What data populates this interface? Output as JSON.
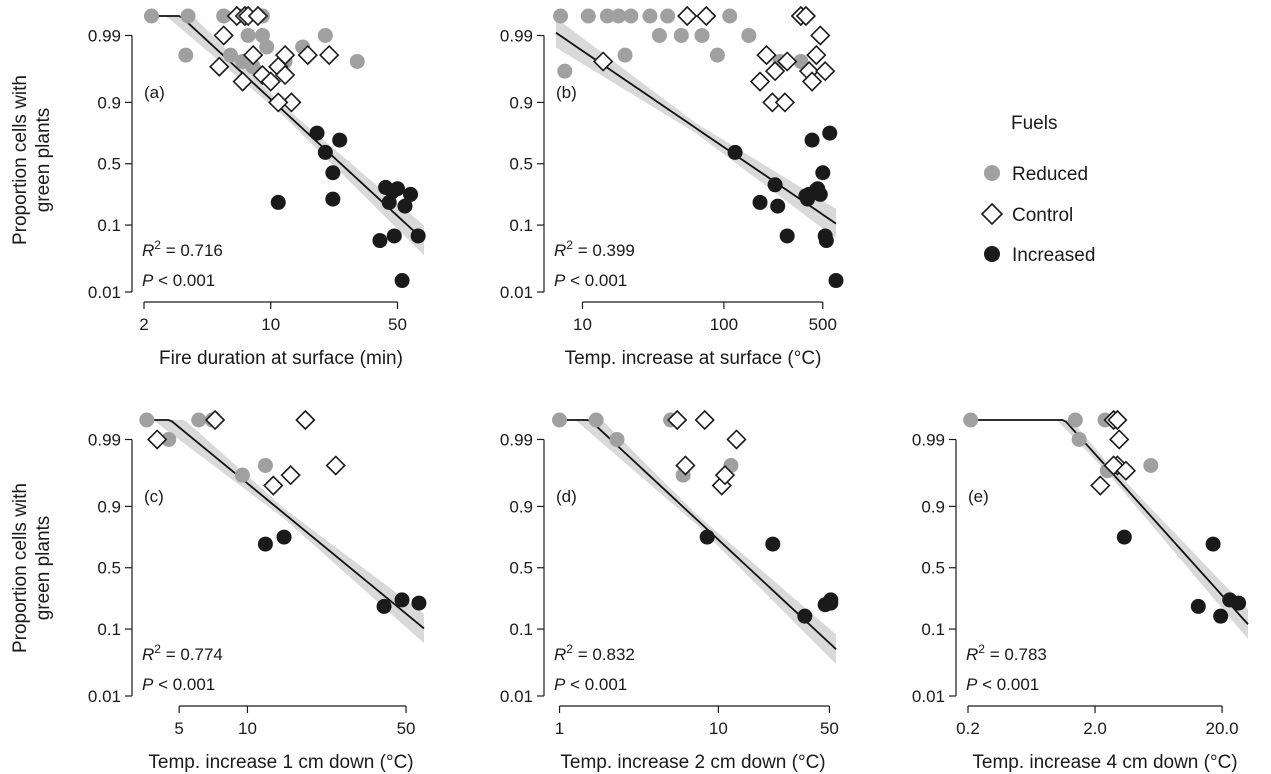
{
  "figure": {
    "ylabel_line1": "Proportion cells with",
    "ylabel_line2": "green plants",
    "legend": {
      "title": "Fuels",
      "items": [
        {
          "label": "Reduced",
          "marker": "gray-circle",
          "color": "#a0a0a0"
        },
        {
          "label": "Control",
          "marker": "open-diamond",
          "color": "#ffffff"
        },
        {
          "label": "Increased",
          "marker": "black-circle",
          "color": "#1a1a1a"
        }
      ]
    },
    "colors": {
      "reduced": "#a0a0a0",
      "control": "#ffffff",
      "increased": "#1a1a1a",
      "band": "#d9d9d9",
      "fit": "#111111"
    }
  },
  "chart_data": [
    {
      "type": "scatter",
      "panel": "(a)",
      "xlabel": "Fire duration at surface (min)",
      "ylabel": "Proportion cells with green plants",
      "xscale": "log",
      "yscale": "logit",
      "xlim": [
        2,
        70
      ],
      "ylim": [
        0.01,
        0.995
      ],
      "xticks": [
        2,
        10,
        50
      ],
      "xtick_labels": [
        "2",
        "10",
        "50"
      ],
      "yticks": [
        0.01,
        0.1,
        0.5,
        0.9,
        0.99
      ],
      "ytick_labels": [
        "0.01",
        "0.1",
        "0.5",
        "0.9",
        "0.99"
      ],
      "stats": {
        "r2": "0.716",
        "p": "0.001"
      },
      "fit": {
        "a": 8.3,
        "b": -2.6
      },
      "series": [
        {
          "name": "Reduced",
          "points": [
            [
              2.2,
              0.995
            ],
            [
              3.5,
              0.995
            ],
            [
              3.4,
              0.98
            ],
            [
              5.5,
              0.995
            ],
            [
              6,
              0.98
            ],
            [
              7,
              0.995
            ],
            [
              7.5,
              0.99
            ],
            [
              7,
              0.975
            ],
            [
              8,
              0.97
            ],
            [
              9,
              0.995
            ],
            [
              9.5,
              0.985
            ],
            [
              9,
              0.99
            ],
            [
              20,
              0.99
            ],
            [
              12,
              0.975
            ],
            [
              15,
              0.985
            ],
            [
              30,
              0.975
            ]
          ]
        },
        {
          "name": "Control",
          "points": [
            [
              5.2,
              0.97
            ],
            [
              5.5,
              0.99
            ],
            [
              6.5,
              0.995
            ],
            [
              7.2,
              0.995
            ],
            [
              7.5,
              0.995
            ],
            [
              8.5,
              0.995
            ],
            [
              8,
              0.98
            ],
            [
              7,
              0.95
            ],
            [
              9,
              0.96
            ],
            [
              10,
              0.95
            ],
            [
              11,
              0.97
            ],
            [
              12,
              0.96
            ],
            [
              12,
              0.98
            ],
            [
              16,
              0.98
            ],
            [
              13,
              0.9
            ],
            [
              11,
              0.9
            ],
            [
              21,
              0.98
            ]
          ]
        },
        {
          "name": "Increased",
          "points": [
            [
              11,
              0.2
            ],
            [
              18,
              0.75
            ],
            [
              20,
              0.6
            ],
            [
              22,
              0.42
            ],
            [
              22,
              0.22
            ],
            [
              24,
              0.7
            ],
            [
              40,
              0.06
            ],
            [
              43,
              0.3
            ],
            [
              45,
              0.2
            ],
            [
              47,
              0.27
            ],
            [
              48,
              0.07
            ],
            [
              50,
              0.29
            ],
            [
              53,
              0.015
            ],
            [
              55,
              0.18
            ],
            [
              59,
              0.25
            ],
            [
              65,
              0.07
            ]
          ]
        }
      ]
    },
    {
      "type": "scatter",
      "panel": "(b)",
      "xlabel": "Temp. increase at surface (°C)",
      "ylabel": "",
      "xscale": "log",
      "yscale": "logit",
      "xlim": [
        6.5,
        620
      ],
      "ylim": [
        0.01,
        0.995
      ],
      "xticks": [
        10,
        100,
        500
      ],
      "xtick_labels": [
        "10",
        "100",
        "500"
      ],
      "yticks": [
        0.01,
        0.1,
        0.5,
        0.9,
        0.99
      ],
      "ytick_labels": [
        "0.01",
        "0.1",
        "0.5",
        "0.9",
        "0.99"
      ],
      "stats": {
        "r2": "0.399",
        "p": "0.001"
      },
      "fit": {
        "a": 7.5,
        "b": -1.5
      },
      "series": [
        {
          "name": "Reduced",
          "points": [
            [
              7,
              0.995
            ],
            [
              7.5,
              0.965
            ],
            [
              11,
              0.995
            ],
            [
              15,
              0.995
            ],
            [
              18,
              0.995
            ],
            [
              20,
              0.98
            ],
            [
              22,
              0.995
            ],
            [
              30,
              0.995
            ],
            [
              35,
              0.99
            ],
            [
              40,
              0.995
            ],
            [
              50,
              0.99
            ],
            [
              70,
              0.99
            ],
            [
              90,
              0.98
            ],
            [
              110,
              0.995
            ],
            [
              150,
              0.99
            ],
            [
              200,
              0.98
            ],
            [
              250,
              0.975
            ],
            [
              350,
              0.975
            ]
          ]
        },
        {
          "name": "Control",
          "points": [
            [
              14,
              0.975
            ],
            [
              55,
              0.995
            ],
            [
              75,
              0.995
            ],
            [
              180,
              0.95
            ],
            [
              200,
              0.98
            ],
            [
              220,
              0.9
            ],
            [
              230,
              0.965
            ],
            [
              270,
              0.9
            ],
            [
              280,
              0.975
            ],
            [
              350,
              0.995
            ],
            [
              380,
              0.995
            ],
            [
              400,
              0.965
            ],
            [
              420,
              0.95
            ],
            [
              450,
              0.98
            ],
            [
              480,
              0.99
            ],
            [
              520,
              0.965
            ]
          ]
        },
        {
          "name": "Increased",
          "points": [
            [
              120,
              0.6
            ],
            [
              180,
              0.2
            ],
            [
              230,
              0.32
            ],
            [
              240,
              0.18
            ],
            [
              280,
              0.07
            ],
            [
              380,
              0.24
            ],
            [
              390,
              0.22
            ],
            [
              400,
              0.25
            ],
            [
              420,
              0.7
            ],
            [
              450,
              0.28
            ],
            [
              460,
              0.29
            ],
            [
              480,
              0.25
            ],
            [
              500,
              0.42
            ],
            [
              520,
              0.07
            ],
            [
              530,
              0.06
            ],
            [
              560,
              0.75
            ],
            [
              620,
              0.015
            ]
          ]
        }
      ]
    },
    {
      "type": "scatter",
      "panel": "(c)",
      "xlabel": "Temp. increase 1 cm down (°C)",
      "ylabel": "Proportion cells with green plants",
      "xscale": "log",
      "yscale": "logit",
      "xlim": [
        3.5,
        60
      ],
      "ylim": [
        0.01,
        0.995
      ],
      "xticks": [
        5,
        10,
        50
      ],
      "xtick_labels": [
        "5",
        "10",
        "50"
      ],
      "yticks": [
        0.01,
        0.1,
        0.5,
        0.9,
        0.99
      ],
      "ytick_labels": [
        "0.01",
        "0.1",
        "0.5",
        "0.9",
        "0.99"
      ],
      "stats": {
        "r2": "0.774",
        "p": "0.001"
      },
      "fit": {
        "a": 9.7,
        "b": -2.9
      },
      "series": [
        {
          "name": "Reduced",
          "points": [
            [
              3.6,
              0.995
            ],
            [
              4.5,
              0.99
            ],
            [
              6.1,
              0.995
            ],
            [
              7,
              0.995
            ],
            [
              9.5,
              0.965
            ],
            [
              12,
              0.975
            ]
          ]
        },
        {
          "name": "Control",
          "points": [
            [
              4,
              0.99
            ],
            [
              7.2,
              0.995
            ],
            [
              13,
              0.95
            ],
            [
              15.5,
              0.965
            ],
            [
              18,
              0.995
            ],
            [
              24.5,
              0.975
            ]
          ]
        },
        {
          "name": "Increased",
          "points": [
            [
              12,
              0.7
            ],
            [
              14.5,
              0.75
            ],
            [
              40,
              0.2
            ],
            [
              48,
              0.24
            ],
            [
              57,
              0.22
            ]
          ]
        }
      ]
    },
    {
      "type": "scatter",
      "panel": "(d)",
      "xlabel": "Temp. increase 2 cm down (°C)",
      "ylabel": "",
      "xscale": "log",
      "yscale": "logit",
      "xlim": [
        0.95,
        55
      ],
      "ylim": [
        0.01,
        0.995
      ],
      "xticks": [
        1,
        10,
        50
      ],
      "xtick_labels": [
        "1",
        "10",
        "50"
      ],
      "yticks": [
        0.01,
        0.1,
        0.5,
        0.9,
        0.99
      ],
      "ytick_labels": [
        "0.01",
        "0.1",
        "0.5",
        "0.9",
        "0.99"
      ],
      "stats": {
        "r2": "0.832",
        "p": "0.001"
      },
      "fit": {
        "a": 6.3,
        "b": -2.3
      },
      "series": [
        {
          "name": "Reduced",
          "points": [
            [
              1,
              0.995
            ],
            [
              1.7,
              0.995
            ],
            [
              2.3,
              0.99
            ],
            [
              5,
              0.995
            ],
            [
              6,
              0.965
            ],
            [
              12,
              0.975
            ]
          ]
        },
        {
          "name": "Control",
          "points": [
            [
              5.5,
              0.995
            ],
            [
              6.2,
              0.975
            ],
            [
              8.2,
              0.995
            ],
            [
              10.5,
              0.95
            ],
            [
              11,
              0.965
            ],
            [
              13,
              0.99
            ]
          ]
        },
        {
          "name": "Increased",
          "points": [
            [
              8.5,
              0.75
            ],
            [
              22,
              0.7
            ],
            [
              35,
              0.15
            ],
            [
              47,
              0.21
            ],
            [
              51,
              0.24
            ],
            [
              51,
              0.22
            ]
          ]
        }
      ]
    },
    {
      "type": "scatter",
      "panel": "(e)",
      "xlabel": "Temp. increase 4 cm down (°C)",
      "ylabel": "",
      "xscale": "log",
      "yscale": "logit",
      "xlim": [
        0.2,
        32
      ],
      "ylim": [
        0.01,
        0.995
      ],
      "xticks": [
        0.2,
        2.0,
        20.0
      ],
      "xtick_labels": [
        "0.2",
        "2.0",
        "20.0"
      ],
      "yticks": [
        0.01,
        0.1,
        0.5,
        0.9,
        0.99
      ],
      "ytick_labels": [
        "0.01",
        "0.1",
        "0.5",
        "0.9",
        "0.99"
      ],
      "stats": {
        "r2": "0.783",
        "p": "0.001"
      },
      "fit": {
        "a": 5.6,
        "b": -2.2
      },
      "series": [
        {
          "name": "Reduced",
          "points": [
            [
              0.21,
              0.995
            ],
            [
              1.4,
              0.995
            ],
            [
              1.5,
              0.99
            ],
            [
              2.4,
              0.995
            ],
            [
              2.5,
              0.97
            ],
            [
              5.5,
              0.975
            ]
          ]
        },
        {
          "name": "Control",
          "points": [
            [
              2.2,
              0.95
            ],
            [
              2.8,
              0.995
            ],
            [
              3,
              0.995
            ],
            [
              3.1,
              0.99
            ],
            [
              3,
              0.975
            ],
            [
              2.8,
              0.975
            ],
            [
              3.5,
              0.97
            ]
          ]
        },
        {
          "name": "Increased",
          "points": [
            [
              3.4,
              0.75
            ],
            [
              13,
              0.2
            ],
            [
              17,
              0.7
            ],
            [
              19.5,
              0.15
            ],
            [
              23,
              0.24
            ],
            [
              27,
              0.22
            ]
          ]
        }
      ]
    }
  ]
}
